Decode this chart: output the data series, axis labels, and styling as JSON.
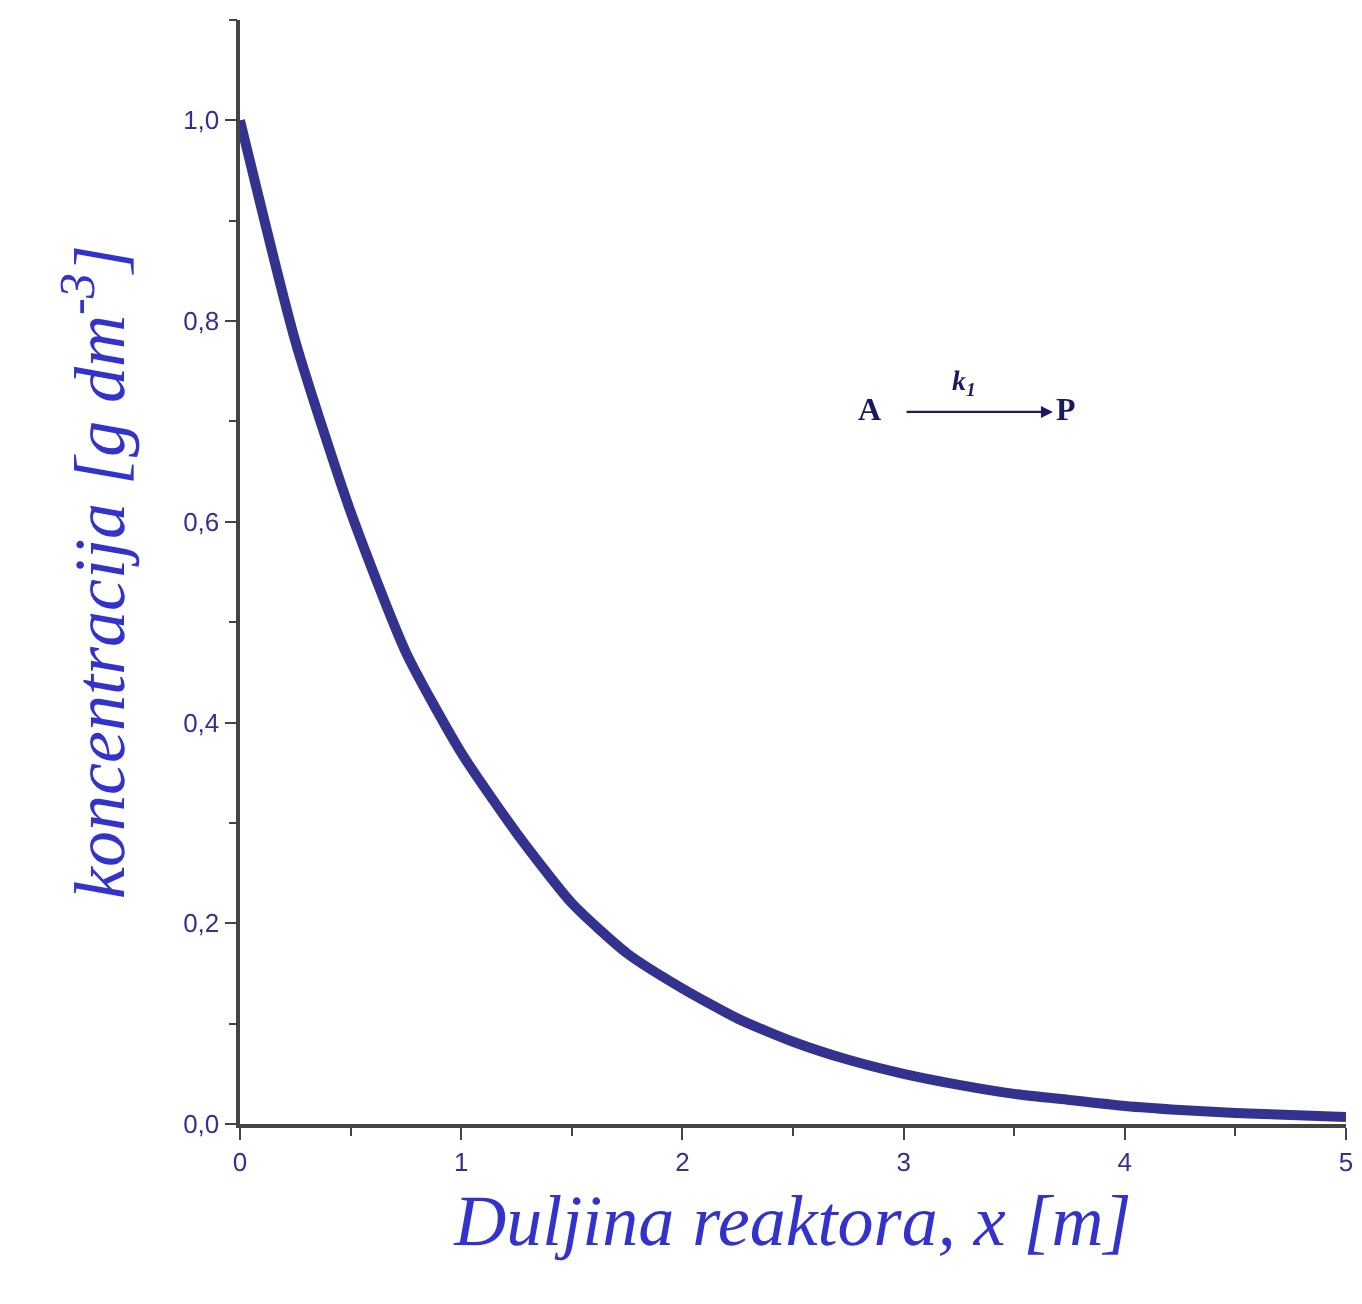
{
  "chart_data": {
    "type": "line",
    "xlabel": "Duljina reaktora, x [m]",
    "ylabel": "koncentracija [g dm$^{-3}$]",
    "x": [
      0,
      0.25,
      0.5,
      0.75,
      1,
      1.25,
      1.5,
      1.75,
      2,
      2.25,
      2.5,
      2.75,
      3,
      3.25,
      3.5,
      3.75,
      4,
      4.25,
      4.5,
      4.75,
      5
    ],
    "series": [
      {
        "color": "#33338f",
        "values": [
          1.0,
          0.78,
          0.61,
          0.47,
          0.37,
          0.29,
          0.22,
          0.17,
          0.135,
          0.105,
          0.082,
          0.064,
          0.05,
          0.039,
          0.03,
          0.024,
          0.018,
          0.014,
          0.011,
          0.009,
          0.007
        ]
      }
    ],
    "xlim": [
      0,
      5
    ],
    "xticks": [
      0,
      1,
      2,
      3,
      4,
      5
    ],
    "ylim": [
      0,
      1.1
    ],
    "yticks": [
      {
        "value": 0,
        "label": "0,0"
      },
      {
        "value": 0.2,
        "label": "0,2"
      },
      {
        "value": 0.4,
        "label": "0,4"
      },
      {
        "value": 0.6,
        "label": "0,6"
      },
      {
        "value": 0.8,
        "label": "0,8"
      },
      {
        "value": 1.0,
        "label": "1,0"
      }
    ],
    "grid": false,
    "marker": "none",
    "line_style": "solid",
    "annotations": [
      "A",
      "k$_{1}$",
      "P"
    ]
  }
}
